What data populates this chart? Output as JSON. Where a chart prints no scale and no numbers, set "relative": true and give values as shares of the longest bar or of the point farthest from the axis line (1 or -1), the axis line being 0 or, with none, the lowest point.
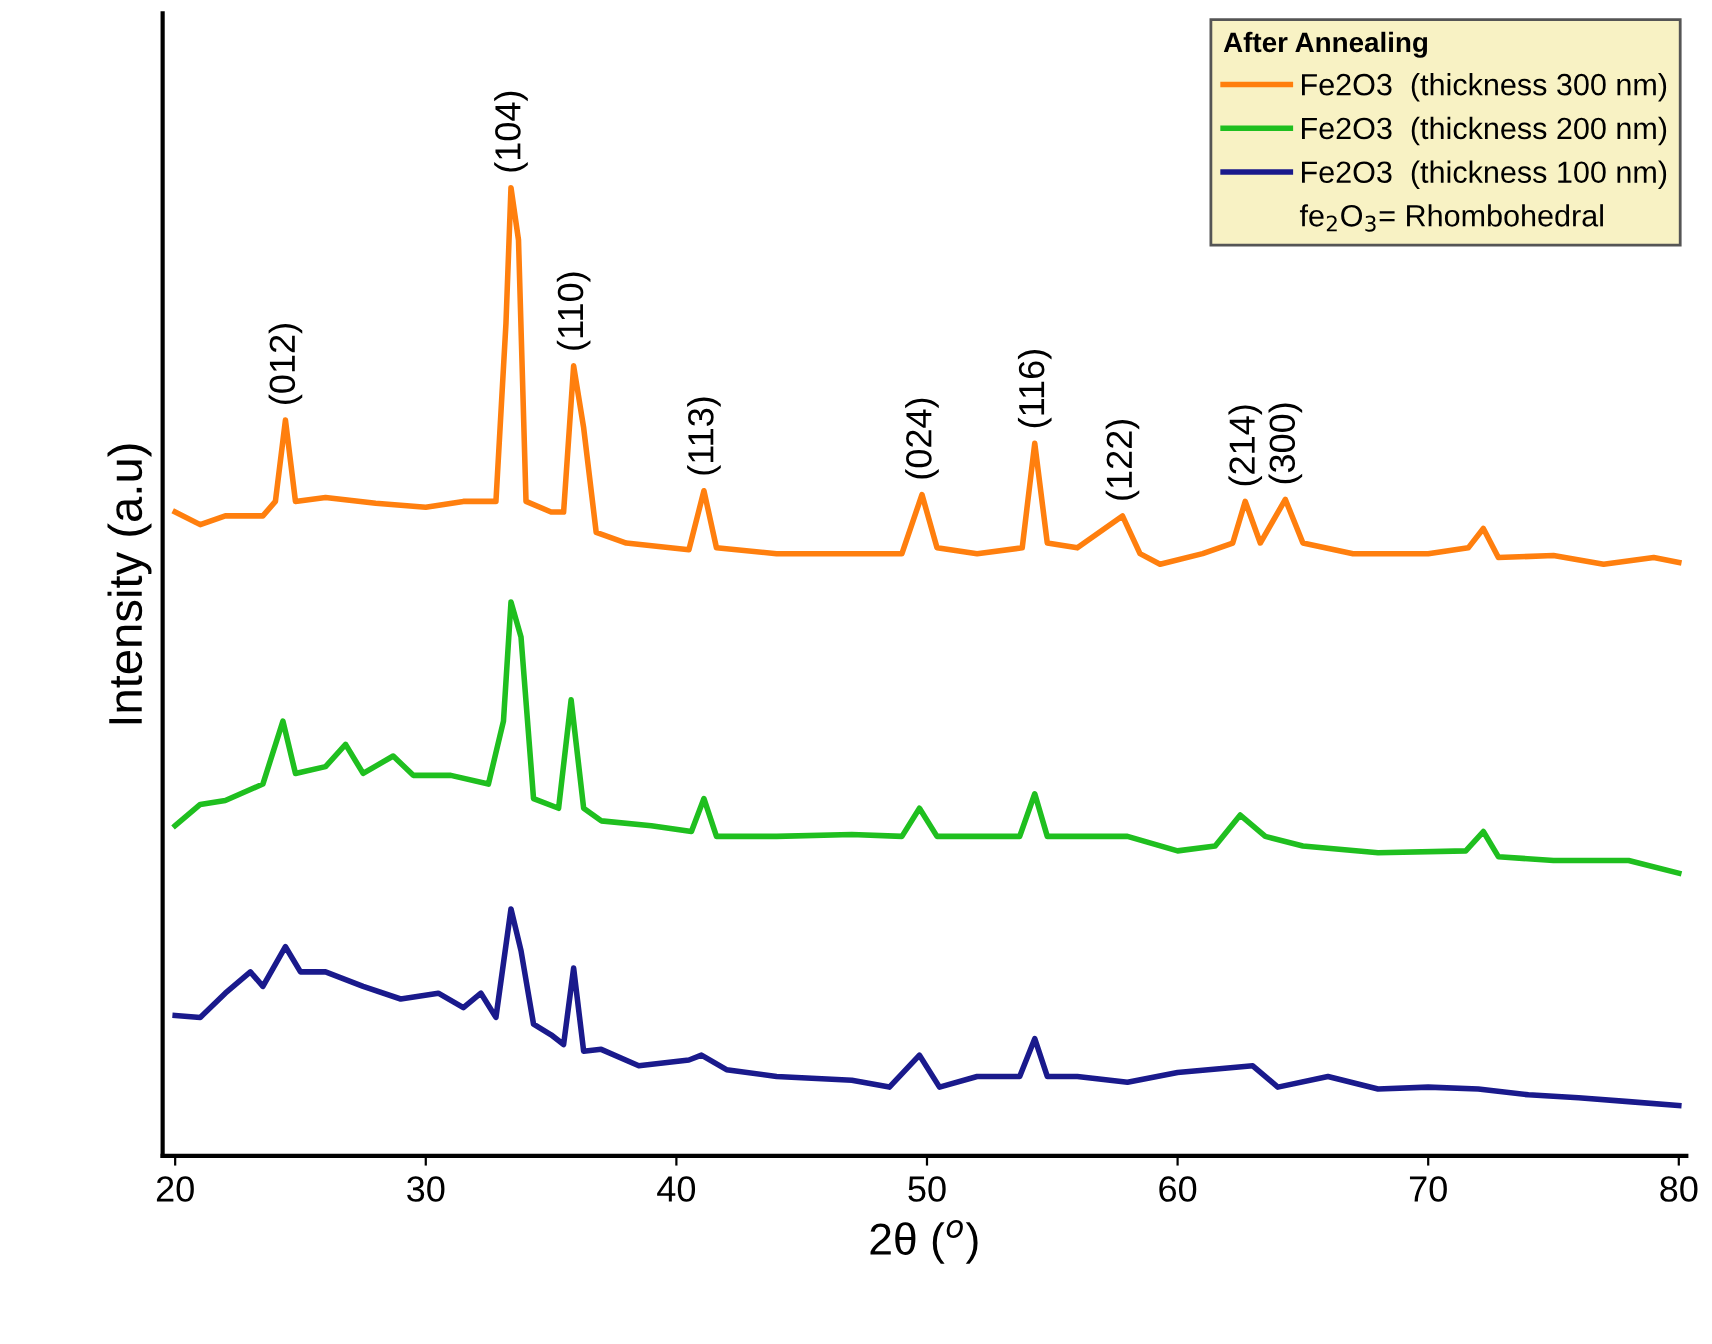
{
  "chart_data": {
    "type": "line",
    "relative": true,
    "xlabel": "2θ ($^{o}$)",
    "ylabel": "Intensity (a.u)",
    "legend_title": "After Annealing",
    "legend": "top right",
    "xlim": [
      19.5,
      80.3
    ],
    "xticks": [
      20,
      30,
      40,
      50,
      60,
      70,
      80
    ],
    "annotations": [
      "fe$_{2}$O$_{3}$= Rhombohedral",
      {
        "text": "(012)",
        "x": 24.4,
        "y": 0.76
      },
      {
        "text": "(104)",
        "x": 33.4,
        "y": 1.0
      },
      {
        "text": "(110)",
        "x": 35.9,
        "y": 0.816
      },
      {
        "text": "(113)",
        "x": 41.1,
        "y": 0.687
      },
      {
        "text": "(024)",
        "x": 49.8,
        "y": 0.683
      },
      {
        "text": "(116)",
        "x": 54.3,
        "y": 0.736
      },
      {
        "text": "(122)",
        "x": 57.8,
        "y": 0.661
      },
      {
        "text": "(214)",
        "x": 62.7,
        "y": 0.676
      },
      {
        "text": "(300)",
        "x": 64.3,
        "y": 0.678
      }
    ],
    "series": [
      {
        "name": "Fe2O3  (thickness 300 nm)",
        "color": "#ff7f0e",
        "x": [
          20,
          21,
          22,
          23.5,
          24,
          24.4,
          24.8,
          26,
          28,
          30,
          31.5,
          32.8,
          33.2,
          33.4,
          33.7,
          34,
          35,
          35.5,
          35.9,
          36.3,
          36.8,
          38,
          40.5,
          41.1,
          41.6,
          44,
          47,
          49,
          49.8,
          50.4,
          52,
          53.8,
          54.3,
          54.8,
          56,
          57.8,
          58.5,
          59.3,
          61,
          62.2,
          62.7,
          63.3,
          64.3,
          65,
          67,
          70,
          71.6,
          72.2,
          72.8,
          75,
          77,
          79,
          80
        ],
        "values": [
          0.665,
          0.652,
          0.661,
          0.661,
          0.676,
          0.76,
          0.676,
          0.68,
          0.674,
          0.67,
          0.676,
          0.676,
          0.86,
          1.0,
          0.946,
          0.676,
          0.665,
          0.665,
          0.816,
          0.752,
          0.644,
          0.633,
          0.626,
          0.687,
          0.628,
          0.622,
          0.622,
          0.622,
          0.683,
          0.628,
          0.622,
          0.628,
          0.736,
          0.633,
          0.628,
          0.661,
          0.622,
          0.611,
          0.622,
          0.633,
          0.676,
          0.633,
          0.678,
          0.633,
          0.622,
          0.622,
          0.628,
          0.648,
          0.618,
          0.62,
          0.611,
          0.618,
          0.613
        ]
      },
      {
        "name": "Fe2O3  (thickness 200 nm)",
        "color": "#1fbf1f",
        "x": [
          20,
          21,
          22,
          23.5,
          24.3,
          24.8,
          26,
          26.8,
          27.5,
          28.7,
          29.5,
          31,
          32.5,
          33.1,
          33.4,
          33.8,
          34.3,
          35.3,
          35.8,
          36.3,
          37,
          39,
          40.6,
          41.1,
          41.6,
          44,
          47,
          49,
          49.7,
          50.4,
          52,
          53.7,
          54.3,
          54.8,
          56,
          58,
          60,
          61.5,
          62.5,
          63.5,
          65,
          68,
          71.5,
          72.2,
          72.8,
          75,
          78,
          80
        ],
        "values": [
          0.341,
          0.363,
          0.367,
          0.384,
          0.449,
          0.395,
          0.402,
          0.425,
          0.395,
          0.413,
          0.393,
          0.393,
          0.384,
          0.449,
          0.572,
          0.536,
          0.369,
          0.359,
          0.471,
          0.359,
          0.346,
          0.341,
          0.335,
          0.369,
          0.33,
          0.33,
          0.332,
          0.33,
          0.359,
          0.33,
          0.33,
          0.33,
          0.374,
          0.33,
          0.33,
          0.33,
          0.315,
          0.32,
          0.352,
          0.33,
          0.32,
          0.313,
          0.315,
          0.335,
          0.309,
          0.305,
          0.305,
          0.292
        ]
      },
      {
        "name": "Fe2O3  (thickness 100 nm)",
        "color": "#1a1a8c",
        "x": [
          20,
          21,
          22,
          23,
          23.5,
          24.4,
          25,
          26,
          27.5,
          29,
          30.5,
          31.5,
          32.2,
          32.8,
          33.4,
          33.8,
          34.3,
          35,
          35.5,
          35.9,
          36.3,
          37,
          38.5,
          40.5,
          41,
          42,
          44,
          47,
          48.5,
          49.7,
          50.5,
          52,
          53.7,
          54.3,
          54.8,
          56,
          58,
          60,
          63,
          64,
          66,
          68,
          70,
          72,
          74,
          76,
          78,
          80
        ],
        "values": [
          0.145,
          0.143,
          0.168,
          0.19,
          0.175,
          0.216,
          0.19,
          0.19,
          0.175,
          0.162,
          0.168,
          0.153,
          0.168,
          0.143,
          0.255,
          0.212,
          0.136,
          0.125,
          0.115,
          0.194,
          0.108,
          0.11,
          0.093,
          0.099,
          0.104,
          0.089,
          0.082,
          0.078,
          0.071,
          0.104,
          0.071,
          0.082,
          0.082,
          0.121,
          0.082,
          0.082,
          0.076,
          0.086,
          0.093,
          0.071,
          0.082,
          0.069,
          0.071,
          0.069,
          0.063,
          0.06,
          0.056,
          0.052
        ]
      }
    ]
  }
}
